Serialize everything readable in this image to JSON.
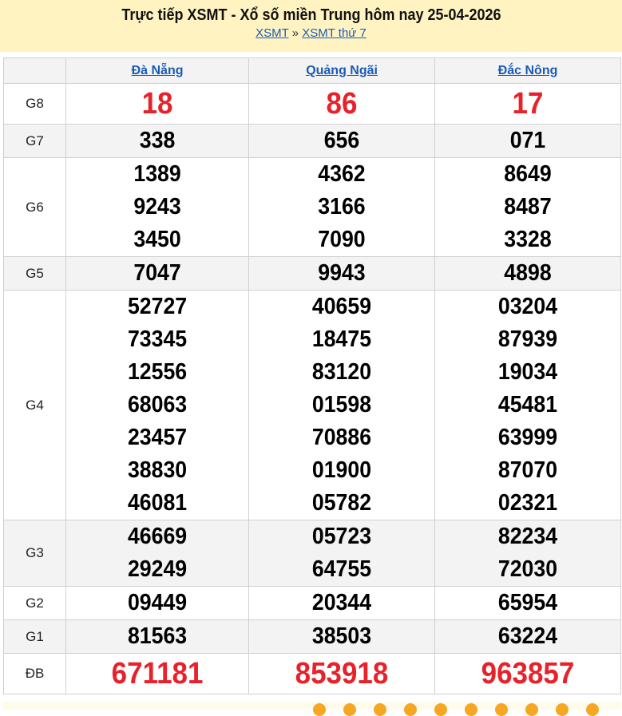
{
  "header": {
    "title": "Trực tiếp XSMT - Xổ số miền Trung hôm nay 25-04-2026",
    "crumbs": [
      "XSMT",
      "XSMT thứ 7"
    ],
    "sep": "»"
  },
  "provinces": [
    "Đà Nẵng",
    "Quảng Ngãi",
    "Đắc Nông"
  ],
  "colors": {
    "accent_red": "#e8222b",
    "link": "#1a5bb5",
    "header_bg": "#fff3c2"
  },
  "rows": [
    {
      "label": "G8",
      "red": true,
      "values": [
        [
          "18"
        ],
        [
          "86"
        ],
        [
          "17"
        ]
      ]
    },
    {
      "label": "G7",
      "values": [
        [
          "338"
        ],
        [
          "656"
        ],
        [
          "071"
        ]
      ]
    },
    {
      "label": "G6",
      "values": [
        [
          "1389",
          "9243",
          "3450"
        ],
        [
          "4362",
          "3166",
          "7090"
        ],
        [
          "8649",
          "8487",
          "3328"
        ]
      ]
    },
    {
      "label": "G5",
      "values": [
        [
          "7047"
        ],
        [
          "9943"
        ],
        [
          "4898"
        ]
      ]
    },
    {
      "label": "G4",
      "values": [
        [
          "52727",
          "73345",
          "12556",
          "68063",
          "23457",
          "38830",
          "46081"
        ],
        [
          "40659",
          "18475",
          "83120",
          "01598",
          "70886",
          "01900",
          "05782"
        ],
        [
          "03204",
          "87939",
          "19034",
          "45481",
          "63999",
          "87070",
          "02321"
        ]
      ]
    },
    {
      "label": "G3",
      "values": [
        [
          "46669",
          "29249"
        ],
        [
          "05723",
          "64755"
        ],
        [
          "82234",
          "72030"
        ]
      ]
    },
    {
      "label": "G2",
      "values": [
        [
          "09449"
        ],
        [
          "20344"
        ],
        [
          "65954"
        ]
      ]
    },
    {
      "label": "G1",
      "values": [
        [
          "81563"
        ],
        [
          "38503"
        ],
        [
          "63224"
        ]
      ]
    },
    {
      "label": "ĐB",
      "red": true,
      "values": [
        [
          "671181"
        ],
        [
          "853918"
        ],
        [
          "963857"
        ]
      ]
    }
  ]
}
